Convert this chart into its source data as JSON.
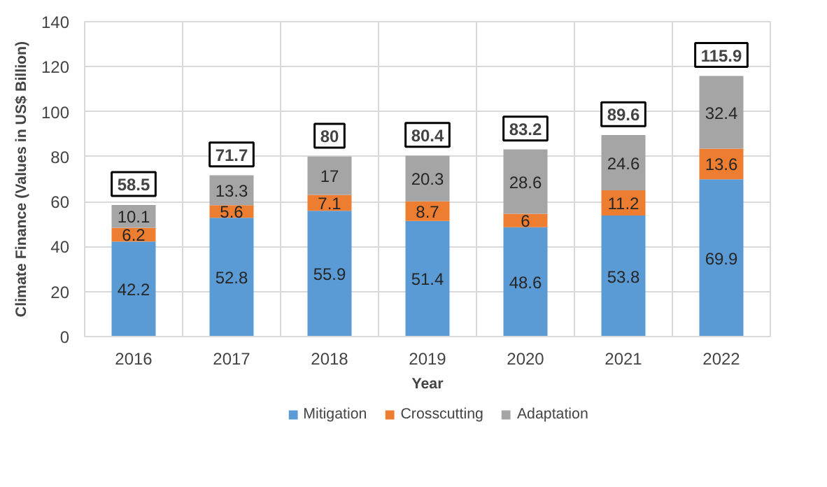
{
  "chart_data": {
    "type": "bar",
    "stacked": true,
    "xlabel": "Year",
    "ylabel": "Climate Finance (Values in US$ Billion)",
    "categories": [
      "2016",
      "2017",
      "2018",
      "2019",
      "2020",
      "2021",
      "2022"
    ],
    "series": [
      {
        "name": "Mitigation",
        "color": "#5b9bd5",
        "values": [
          42.2,
          52.8,
          55.9,
          51.4,
          48.6,
          53.8,
          69.9
        ]
      },
      {
        "name": "Crosscutting",
        "color": "#ed7d31",
        "values": [
          6.2,
          5.6,
          7.1,
          8.7,
          6,
          11.2,
          13.6
        ]
      },
      {
        "name": "Adaptation",
        "color": "#a5a5a5",
        "values": [
          10.1,
          13.3,
          17,
          20.3,
          28.6,
          24.6,
          32.4
        ]
      }
    ],
    "totals": [
      "58.5",
      "71.7",
      "80",
      "80.4",
      "83.2",
      "89.6",
      "115.9"
    ],
    "data_labels": true,
    "ylim": [
      0,
      140
    ],
    "yticks": [
      0,
      20,
      40,
      60,
      80,
      100,
      120,
      140
    ],
    "grid": true,
    "legend": "bottom"
  }
}
